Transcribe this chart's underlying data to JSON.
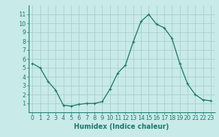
{
  "x": [
    0,
    1,
    2,
    3,
    4,
    5,
    6,
    7,
    8,
    9,
    10,
    11,
    12,
    13,
    14,
    15,
    16,
    17,
    18,
    19,
    20,
    21,
    22,
    23
  ],
  "y": [
    5.5,
    5.0,
    3.5,
    2.5,
    0.8,
    0.7,
    0.9,
    1.0,
    1.0,
    1.2,
    2.6,
    4.4,
    5.3,
    7.9,
    10.2,
    11.0,
    9.9,
    9.5,
    8.3,
    5.5,
    3.2,
    2.0,
    1.4,
    1.3
  ],
  "xlabel": "Humidex (Indice chaleur)",
  "line_color": "#1a7a6e",
  "bg_color": "#c8eae8",
  "grid_color": "#a0c8c8",
  "xlim": [
    -0.5,
    23.5
  ],
  "ylim": [
    0,
    12
  ],
  "yticks": [
    1,
    2,
    3,
    4,
    5,
    6,
    7,
    8,
    9,
    10,
    11
  ],
  "xticks": [
    0,
    1,
    2,
    3,
    4,
    5,
    6,
    7,
    8,
    9,
    10,
    11,
    12,
    13,
    14,
    15,
    16,
    17,
    18,
    19,
    20,
    21,
    22,
    23
  ],
  "marker": "+",
  "marker_size": 3,
  "line_width": 1.0,
  "xlabel_fontsize": 7,
  "tick_fontsize": 6
}
